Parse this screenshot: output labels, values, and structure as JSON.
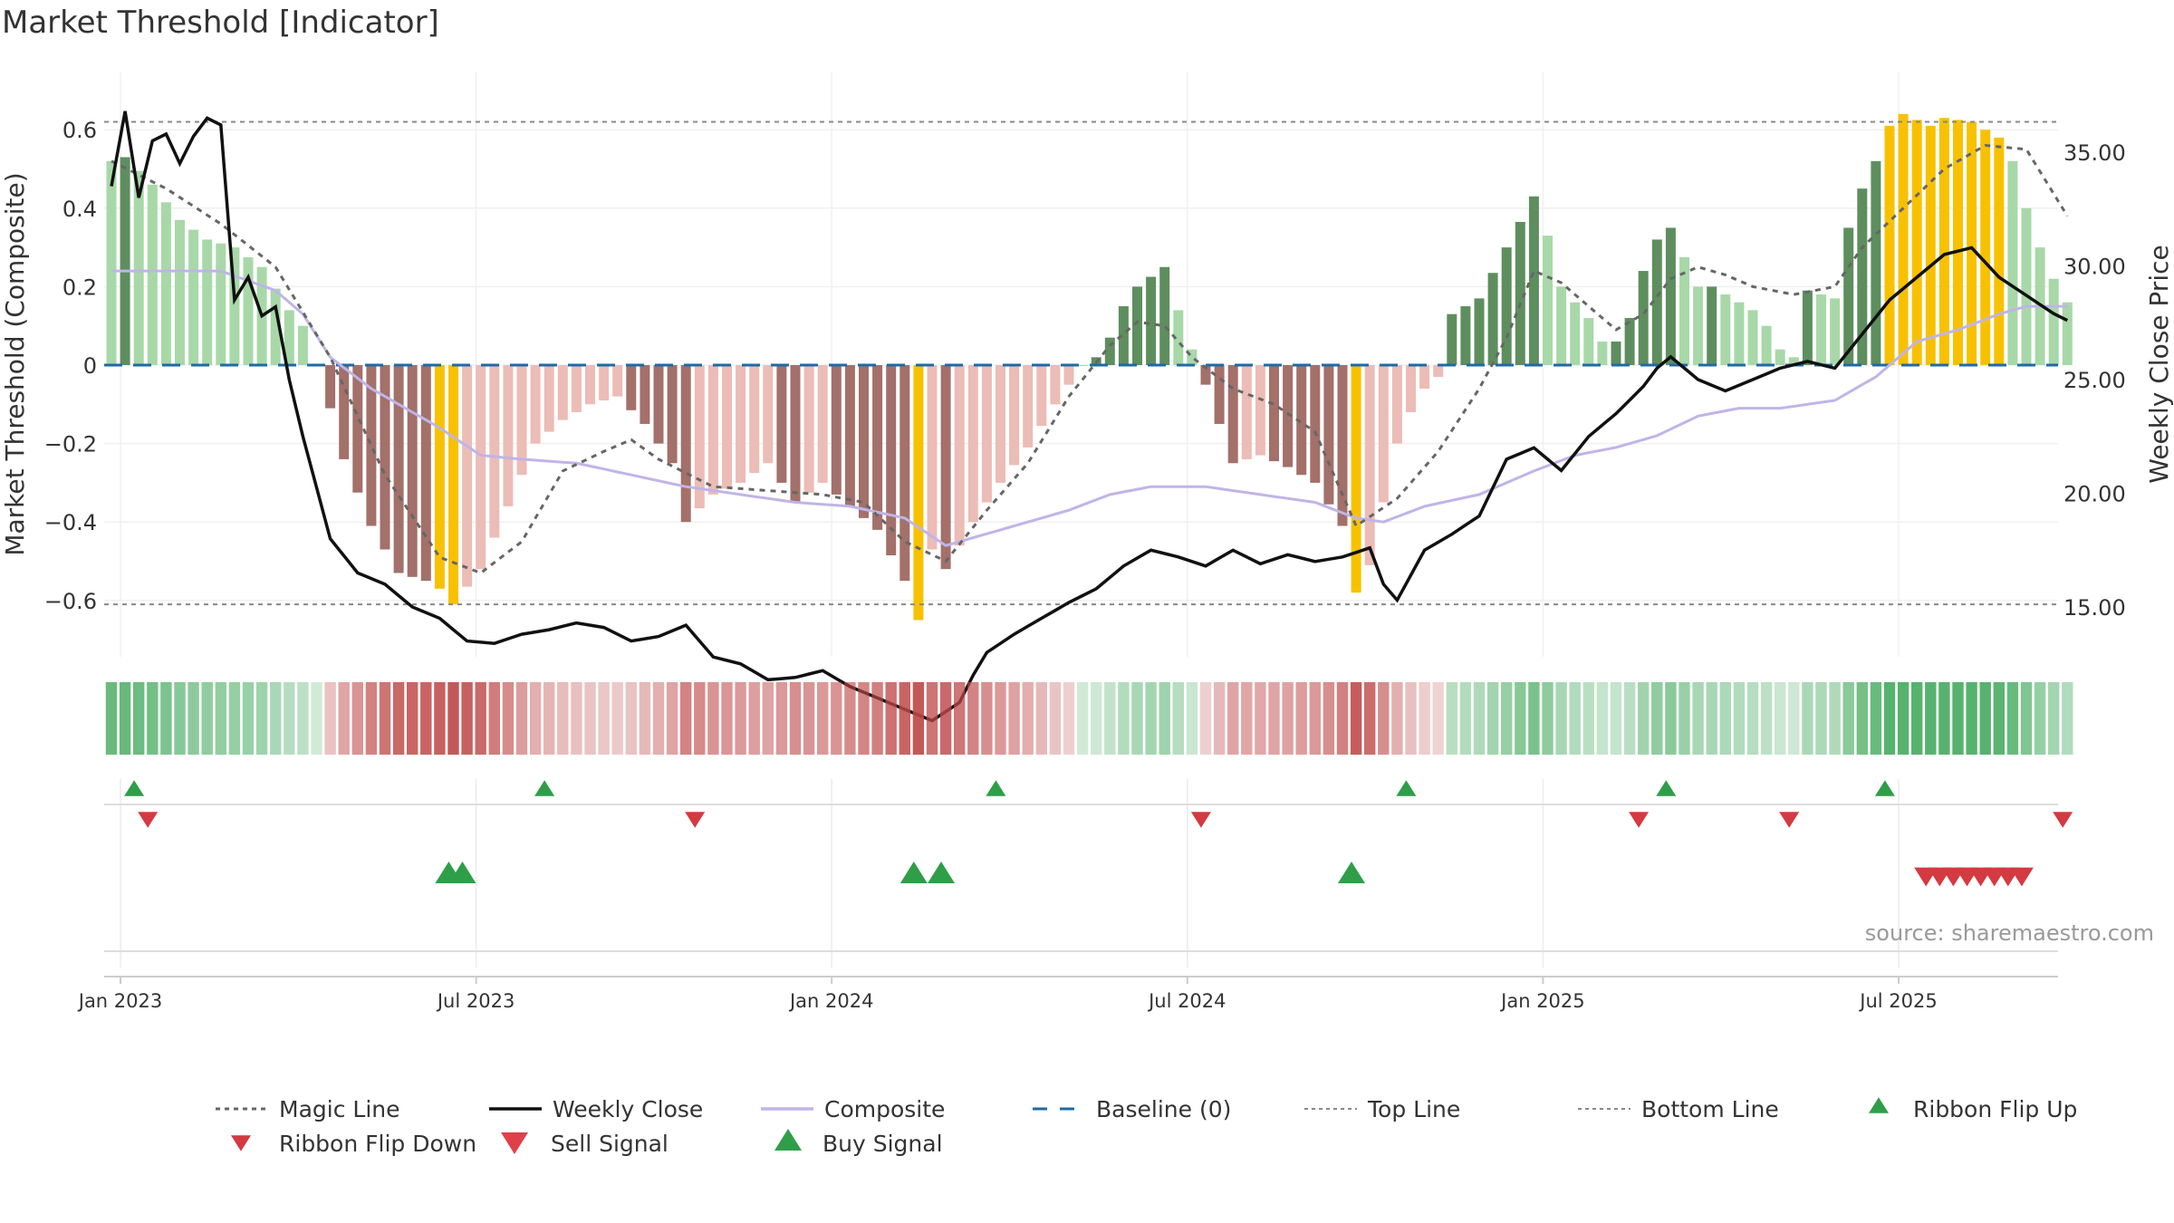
{
  "chart_data": {
    "type": "bar",
    "title": "Market Threshold [Indicator]",
    "ylabel_left": "Market Threshold (Composite)",
    "ylabel_right": "Weekly Close Price",
    "source": "source: sharemaestro.com",
    "x_ticks": [
      "Jan 2023",
      "Jul 2023",
      "Jan 2024",
      "Jul 2024",
      "Jan 2025",
      "Jul 2025"
    ],
    "y_left_ticks": [
      "0.6",
      "0.4",
      "0.2",
      "0",
      "−0.2",
      "−0.4",
      "−0.6"
    ],
    "y_right_ticks": [
      "35.00",
      "30.00",
      "25.00",
      "20.00",
      "15.00"
    ],
    "y_left_range": [
      -0.75,
      0.75
    ],
    "y_right_range": [
      12.0,
      37.5
    ],
    "top_line": 0.62,
    "bottom_line": -0.61,
    "baseline": 0,
    "weeks": 144,
    "legend": [
      "Magic Line",
      "Weekly Close",
      "Composite",
      "Baseline (0)",
      "Top Line",
      "Bottom Line",
      "Ribbon Flip Up",
      "Ribbon Flip Down",
      "Sell Signal",
      "Buy Signal"
    ],
    "ribbon_flip_up_weeks": [
      1,
      31,
      64,
      94,
      113,
      129
    ],
    "ribbon_flip_down_weeks": [
      2,
      42,
      79,
      111,
      122,
      142
    ],
    "buy_signal_weeks": [
      24,
      25,
      58,
      60,
      90
    ],
    "sell_signal_weeks": [
      132,
      133,
      134,
      135,
      136,
      137,
      138,
      139
    ],
    "colors": {
      "pos_light": "#a8d8a8",
      "pos_dark": "#5e8e5e",
      "neg_light": "#ecbcb6",
      "neg_dark": "#a3706a",
      "extreme": "#f8c100",
      "composite": "#c0b4e8",
      "close": "#111111",
      "magic": "#666666",
      "baseline": "#1f6aa5",
      "guide": "#888888",
      "signal_up": "#2e9e49",
      "signal_down": "#d33a41"
    }
  }
}
